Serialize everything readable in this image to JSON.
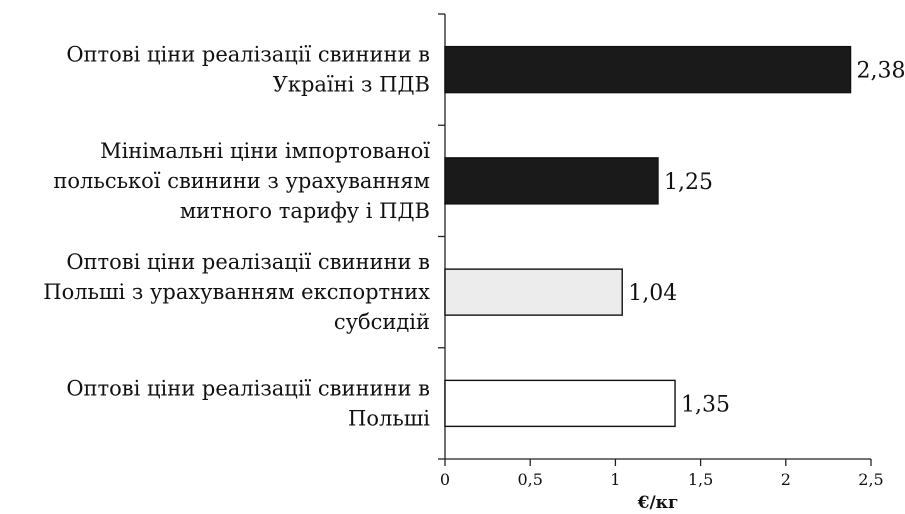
{
  "chart_data": {
    "type": "bar",
    "orientation": "horizontal",
    "categories": [
      [
        "Оптові ціни реалізації свинини в",
        "Україні з ПДВ"
      ],
      [
        "Мінімальні ціни імпортованої",
        "польської свинини з урахуванням",
        "митного тарифу і ПДВ"
      ],
      [
        "Оптові ціни реалізації свинини в",
        "Польші з урахуванням експортних",
        "субсидій"
      ],
      [
        "Оптові ціни реалізації свинини в",
        "Польші"
      ]
    ],
    "values": [
      2.38,
      1.25,
      1.04,
      1.35
    ],
    "value_labels": [
      "2,38",
      "1,25",
      "1,04",
      "1,35"
    ],
    "bar_colors": [
      "#1a1a1a",
      "#1a1a1a",
      "#ececec",
      "#ffffff"
    ],
    "xlabel": "€/кг",
    "xlim": [
      0,
      2.5
    ],
    "xticks": [
      0,
      0.5,
      1,
      1.5,
      2,
      2.5
    ],
    "xtick_labels": [
      "0",
      "0,5",
      "1",
      "1,5",
      "2",
      "2,5"
    ],
    "grid": false,
    "legend": "none"
  }
}
